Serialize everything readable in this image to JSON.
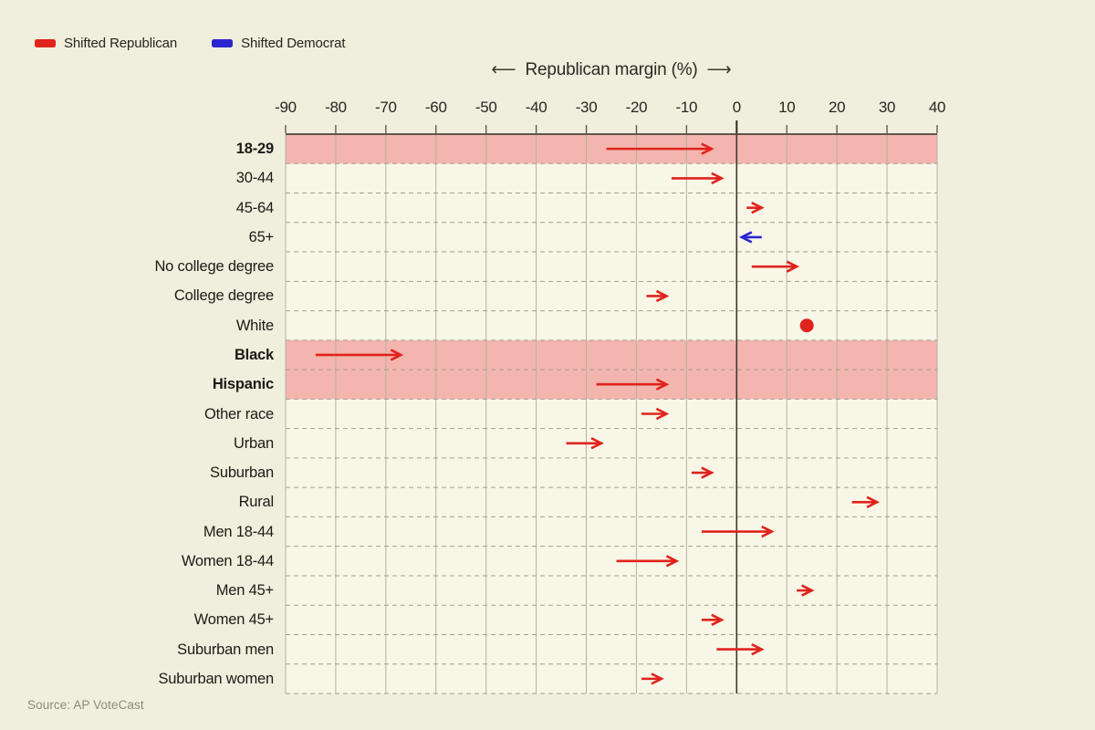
{
  "legend": {
    "items": [
      {
        "label": "Shifted Republican",
        "color": "#e0231c"
      },
      {
        "label": "Shifted Democrat",
        "color": "#2b26cf"
      }
    ]
  },
  "axis": {
    "left_arrow": "⟵",
    "title": "Republican margin (%)",
    "right_arrow": "⟶"
  },
  "source": "Source: AP VoteCast",
  "colors": {
    "page_bg": "#f0eedc",
    "plot_bg": "#f8f6e7",
    "highlight_band": "#f3b5ae",
    "republican": "#e0231c",
    "democrat": "#2b26cf",
    "gridline": "#b4b2a2",
    "row_separator": "#a19f90",
    "zero_line": "#3b392f",
    "plot_top_border": "#2e2d26"
  },
  "chart_data": {
    "type": "arrow-dumbbell",
    "title": "Republican margin (%)",
    "xlabel": "Republican margin (%)",
    "xlim": [
      -90,
      40
    ],
    "x_ticks": [
      -90,
      -80,
      -70,
      -60,
      -50,
      -40,
      -30,
      -20,
      -10,
      0,
      10,
      20,
      30,
      40
    ],
    "grid": "vertical-solid-horizontal-dashed",
    "legend_position": "top-left",
    "legend_entries": [
      "Shifted Republican",
      "Shifted Democrat"
    ],
    "marker_note": "arrow from 2020 margin to 2024 margin; dot = no change",
    "rows": [
      {
        "label": "18-29",
        "start": -26,
        "end": -5,
        "shift": "republican",
        "marker": "arrow",
        "highlight": true,
        "bold": true
      },
      {
        "label": "30-44",
        "start": -13,
        "end": -3,
        "shift": "republican",
        "marker": "arrow",
        "highlight": false,
        "bold": false
      },
      {
        "label": "45-64",
        "start": 2,
        "end": 5,
        "shift": "republican",
        "marker": "arrow",
        "highlight": false,
        "bold": false
      },
      {
        "label": "65+",
        "start": 5,
        "end": 1,
        "shift": "democrat",
        "marker": "arrow",
        "highlight": false,
        "bold": false
      },
      {
        "label": "No college degree",
        "start": 3,
        "end": 12,
        "shift": "republican",
        "marker": "arrow",
        "highlight": false,
        "bold": false
      },
      {
        "label": "College degree",
        "start": -18,
        "end": -14,
        "shift": "republican",
        "marker": "arrow",
        "highlight": false,
        "bold": false
      },
      {
        "label": "White",
        "start": 14,
        "end": 14,
        "shift": "republican",
        "marker": "dot",
        "highlight": false,
        "bold": false
      },
      {
        "label": "Black",
        "start": -84,
        "end": -67,
        "shift": "republican",
        "marker": "arrow",
        "highlight": true,
        "bold": true
      },
      {
        "label": "Hispanic",
        "start": -28,
        "end": -14,
        "shift": "republican",
        "marker": "arrow",
        "highlight": true,
        "bold": true
      },
      {
        "label": "Other race",
        "start": -19,
        "end": -14,
        "shift": "republican",
        "marker": "arrow",
        "highlight": false,
        "bold": false
      },
      {
        "label": "Urban",
        "start": -34,
        "end": -27,
        "shift": "republican",
        "marker": "arrow",
        "highlight": false,
        "bold": false
      },
      {
        "label": "Suburban",
        "start": -9,
        "end": -5,
        "shift": "republican",
        "marker": "arrow",
        "highlight": false,
        "bold": false
      },
      {
        "label": "Rural",
        "start": 23,
        "end": 28,
        "shift": "republican",
        "marker": "arrow",
        "highlight": false,
        "bold": false
      },
      {
        "label": "Men 18-44",
        "start": -7,
        "end": 7,
        "shift": "republican",
        "marker": "arrow",
        "highlight": false,
        "bold": false
      },
      {
        "label": "Women 18-44",
        "start": -24,
        "end": -12,
        "shift": "republican",
        "marker": "arrow",
        "highlight": false,
        "bold": false
      },
      {
        "label": "Men 45+",
        "start": 12,
        "end": 15,
        "shift": "republican",
        "marker": "arrow",
        "highlight": false,
        "bold": false
      },
      {
        "label": "Women 45+",
        "start": -7,
        "end": -3,
        "shift": "republican",
        "marker": "arrow",
        "highlight": false,
        "bold": false
      },
      {
        "label": "Suburban men",
        "start": -4,
        "end": 5,
        "shift": "republican",
        "marker": "arrow",
        "highlight": false,
        "bold": false
      },
      {
        "label": "Suburban women",
        "start": -19,
        "end": -15,
        "shift": "republican",
        "marker": "arrow",
        "highlight": false,
        "bold": false
      }
    ]
  }
}
